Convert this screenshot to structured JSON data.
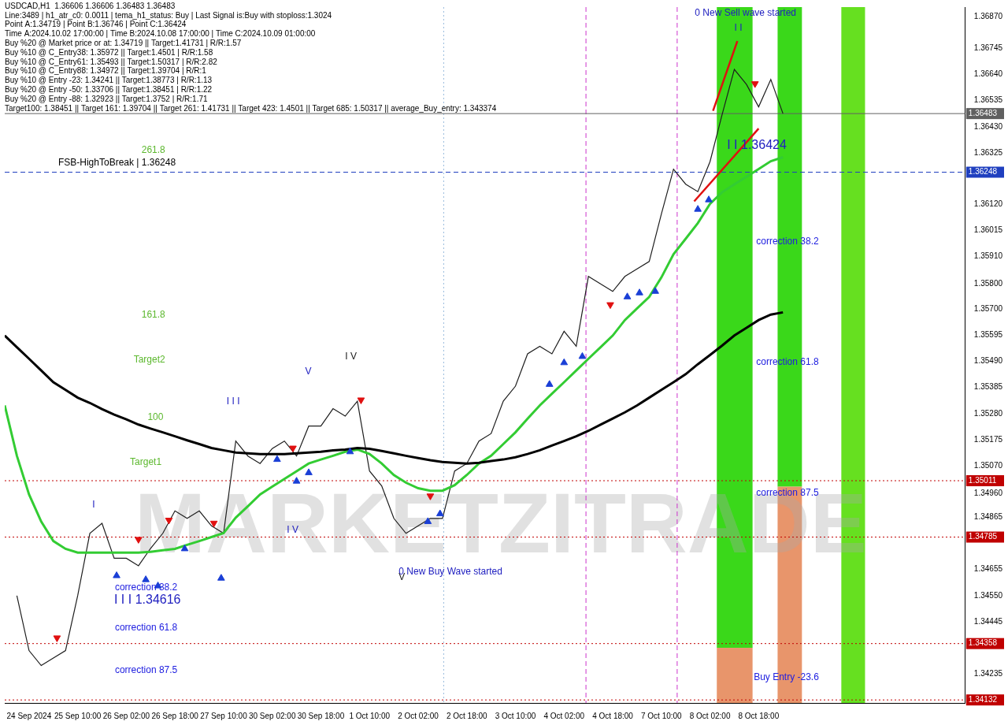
{
  "chart_data": {
    "type": "line",
    "info": [
      "USDCAD,H1  1.36606 1.36606 1.36483 1.36483",
      "Line:3489 | h1_atr_c0: 0.0011 | tema_h1_status: Buy | Last Signal is:Buy with stoploss:1.3024",
      "Point A:1.34719 | Point B:1.36746 | Point C:1.36424",
      "Time A:2024.10.02 17:00:00 | Time B:2024.10.08 17:00:00 | Time C:2024.10.09 01:00:00",
      "Buy %20 @ Market price or at: 1.34719 || Target:1.41731 | R/R:1.57",
      "Buy %10 @ C_Entry38: 1.35972 || Target:1.4501 | R/R:1.58",
      "Buy %10 @ C_Entry61: 1.35493 || Target:1.50317 | R/R:2.82",
      "Buy %10 @ C_Entry88: 1.34972 || Target:1.39704 | R/R:1",
      "Buy %10 @ Entry -23: 1.34241 || Target:1.38773 | R/R:1.13",
      "Buy %20 @ Entry -50: 1.33706 || Target:1.38451 | R/R:1.22",
      "Buy %20 @ Entry -88: 1.32923 || Target:1.3752 | R/R:1.71",
      "Target100: 1.38451 || Target 161: 1.39704 || Target 261: 1.41731 || Target 423: 1.4501 || Target 685: 1.50317 || average_Buy_entry: 1.343374"
    ],
    "watermark": "MARKETZITRADE",
    "categories": [
      null,
      null,
      "24 Sep 2024",
      null,
      null,
      null,
      "25 Sep 10:00",
      null,
      null,
      null,
      "26 Sep 02:00",
      null,
      null,
      null,
      "26 Sep 18:00",
      null,
      null,
      null,
      "27 Sep 10:00",
      null,
      null,
      null,
      "30 Sep 02:00",
      null,
      null,
      null,
      "30 Sep 18:00",
      null,
      null,
      null,
      "1 Oct 10:00",
      null,
      null,
      null,
      "2 Oct 02:00",
      null,
      null,
      null,
      "2 Oct 18:00",
      null,
      null,
      null,
      "3 Oct 10:00",
      null,
      null,
      null,
      "4 Oct 02:00",
      null,
      null,
      null,
      "4 Oct 18:00",
      null,
      null,
      null,
      "7 Oct 10:00",
      null,
      null,
      null,
      "8 Oct 02:00",
      null,
      null,
      null,
      "8 Oct 18:00",
      null,
      null,
      null,
      null,
      null,
      null,
      null,
      null,
      null,
      null,
      null,
      null,
      null,
      null,
      null,
      null,
      null
    ],
    "xlim": [
      0,
      79
    ],
    "ylim": [
      1.3412,
      1.3691
    ],
    "yticks": [
      {
        "value": 1.3687,
        "label": "1.36870"
      },
      {
        "value": 1.36745,
        "label": "1.36745"
      },
      {
        "value": 1.3664,
        "label": "1.36640"
      },
      {
        "value": 1.36535,
        "label": "1.36535"
      },
      {
        "value": 1.3643,
        "label": "1.36430"
      },
      {
        "value": 1.36325,
        "label": "1.36325"
      },
      {
        "value": 1.3612,
        "label": "1.36120"
      },
      {
        "value": 1.36015,
        "label": "1.36015"
      },
      {
        "value": 1.3591,
        "label": "1.35910"
      },
      {
        "value": 1.358,
        "label": "1.35800"
      },
      {
        "value": 1.357,
        "label": "1.35700"
      },
      {
        "value": 1.35595,
        "label": "1.35595"
      },
      {
        "value": 1.3549,
        "label": "1.35490"
      },
      {
        "value": 1.35385,
        "label": "1.35385"
      },
      {
        "value": 1.3528,
        "label": "1.35280"
      },
      {
        "value": 1.35175,
        "label": "1.35175"
      },
      {
        "value": 1.3507,
        "label": "1.35070"
      },
      {
        "value": 1.3496,
        "label": "1.34960"
      },
      {
        "value": 1.34865,
        "label": "1.34865"
      },
      {
        "value": 1.34655,
        "label": "1.34655"
      },
      {
        "value": 1.3455,
        "label": "1.34550"
      },
      {
        "value": 1.34445,
        "label": "1.34445"
      },
      {
        "value": 1.34235,
        "label": "1.34235"
      }
    ],
    "grid": false,
    "legend": false,
    "series": [
      {
        "type": "line",
        "color": "#1e1e1e",
        "line_style": "solid",
        "values": [
          null,
          1.3455,
          1.3433,
          1.3427,
          1.343,
          1.3433,
          1.3455,
          1.348,
          1.3484,
          1.347,
          1.347,
          1.3467,
          1.3474,
          1.348,
          1.3489,
          1.3486,
          1.3489,
          1.3483,
          1.348,
          1.3517,
          1.3511,
          1.3508,
          1.3514,
          1.3517,
          1.3511,
          1.3523,
          1.3523,
          1.353,
          1.3527,
          1.3533,
          1.3505,
          1.3499,
          1.3486,
          1.348,
          1.3483,
          1.3486,
          1.3486,
          1.3505,
          1.3508,
          1.3517,
          1.352,
          1.3533,
          1.3539,
          1.3552,
          1.3555,
          1.3552,
          1.3561,
          1.3555,
          1.3583,
          1.358,
          1.3577,
          1.3583,
          1.3586,
          1.3589,
          1.3608,
          1.3626,
          1.362,
          1.3617,
          1.3629,
          1.3648,
          1.3666,
          1.366,
          1.3651,
          1.3662,
          1.36483,
          null,
          null,
          null,
          null,
          null,
          null,
          null,
          null,
          null,
          null,
          null,
          null,
          null,
          null,
          null
        ]
      },
      {
        "type": "line",
        "color": "#33cc33",
        "line_style": "solid",
        "values": [
          1.35313,
          1.35111,
          1.34956,
          1.34847,
          1.34769,
          1.34738,
          1.34723,
          1.34723,
          1.34723,
          1.34723,
          1.34723,
          1.34723,
          1.34726,
          1.34732,
          1.34738,
          1.34754,
          1.34769,
          1.34785,
          1.34801,
          1.34863,
          1.34909,
          1.34956,
          1.34987,
          1.35018,
          1.35049,
          1.3508,
          1.35096,
          1.35111,
          1.35127,
          1.35136,
          1.35118,
          1.3508,
          1.35034,
          1.35003,
          1.34981,
          1.34971,
          1.34971,
          1.34993,
          1.35034,
          1.3508,
          1.35111,
          1.35158,
          1.35205,
          1.3526,
          1.35313,
          1.3536,
          1.35406,
          1.35453,
          1.355,
          1.35546,
          1.35593,
          1.35655,
          1.35702,
          1.35748,
          1.35826,
          1.35919,
          1.35981,
          1.36044,
          1.36121,
          1.36168,
          1.36199,
          1.3623,
          1.36261,
          1.36292,
          1.36308,
          null,
          null,
          null,
          null,
          null,
          null,
          null,
          null,
          null,
          null,
          null,
          null,
          null,
          null,
          null
        ]
      },
      {
        "type": "line",
        "color": "#000000",
        "line_style": "solid",
        "values": [
          1.35593,
          1.35546,
          1.355,
          1.35453,
          1.35406,
          1.35375,
          1.35344,
          1.35323,
          1.35298,
          1.35276,
          1.35257,
          1.35236,
          1.3522,
          1.35205,
          1.35189,
          1.35173,
          1.35158,
          1.35142,
          1.35133,
          1.35124,
          1.35121,
          1.35118,
          1.35118,
          1.35118,
          1.35121,
          1.35124,
          1.35127,
          1.35133,
          1.35136,
          1.35142,
          1.35139,
          1.3513,
          1.35121,
          1.35111,
          1.35102,
          1.35093,
          1.35086,
          1.35083,
          1.3508,
          1.35083,
          1.3509,
          1.35096,
          1.35105,
          1.35118,
          1.35133,
          1.35152,
          1.3517,
          1.35189,
          1.35211,
          1.35236,
          1.3526,
          1.35285,
          1.35313,
          1.35344,
          1.35375,
          1.35406,
          1.35438,
          1.35478,
          1.35515,
          1.35553,
          1.35593,
          1.35624,
          1.35655,
          1.35677,
          1.35686,
          null,
          null,
          null,
          null,
          null,
          null,
          null,
          null,
          null,
          null,
          null,
          null,
          null,
          null,
          null
        ]
      }
    ],
    "trend_lines": [
      {
        "color": "#e01010",
        "points": [
          {
            "x": 58.25,
            "y": 1.36494
          },
          {
            "x": 60.25,
            "y": 1.36774
          }
        ]
      },
      {
        "color": "#e01010",
        "points": [
          {
            "x": 56.7,
            "y": 1.36131
          },
          {
            "x": 62,
            "y": 1.36423
          }
        ]
      }
    ],
    "signals": [
      {
        "marker": "arrow_up",
        "color": "#1a3fd6",
        "points": [
          {
            "x": 9.2,
            "y": 1.3463
          },
          {
            "x": 11.6,
            "y": 1.34614
          },
          {
            "x": 12.6,
            "y": 1.34589
          },
          {
            "x": 14.8,
            "y": 1.34738
          },
          {
            "x": 17.8,
            "y": 1.3462
          },
          {
            "x": 22.4,
            "y": 1.35096
          },
          {
            "x": 24,
            "y": 1.35009
          },
          {
            "x": 25,
            "y": 1.35043
          },
          {
            "x": 28.4,
            "y": 1.35127
          },
          {
            "x": 34.8,
            "y": 1.34847
          },
          {
            "x": 35.8,
            "y": 1.34878
          },
          {
            "x": 44.8,
            "y": 1.35397
          },
          {
            "x": 46,
            "y": 1.35484
          },
          {
            "x": 47.5,
            "y": 1.35509
          },
          {
            "x": 51.2,
            "y": 1.35748
          },
          {
            "x": 52.2,
            "y": 1.35764
          },
          {
            "x": 53.5,
            "y": 1.3577
          },
          {
            "x": 57,
            "y": 1.36099
          },
          {
            "x": 57.9,
            "y": 1.36137
          }
        ]
      },
      {
        "marker": "arrow_down",
        "color": "#e01010",
        "points": [
          {
            "x": 4.3,
            "y": 1.34381
          },
          {
            "x": 11,
            "y": 1.34776
          },
          {
            "x": 13.5,
            "y": 1.34853
          },
          {
            "x": 17.2,
            "y": 1.34841
          },
          {
            "x": 23.7,
            "y": 1.35142
          },
          {
            "x": 29.3,
            "y": 1.35335
          },
          {
            "x": 35,
            "y": 1.3495
          },
          {
            "x": 49.8,
            "y": 1.35717
          },
          {
            "x": 61.7,
            "y": 1.36603
          }
        ]
      }
    ],
    "bands": [
      {
        "from": 58.56,
        "to": 61.5,
        "split": 1.34341,
        "colors": [
          "#3ad81a",
          "#e8956b"
        ]
      },
      {
        "from": 63.56,
        "to": 65.56,
        "split": 1.34987,
        "colors": [
          "#3ad81a",
          "#e8956b"
        ]
      },
      {
        "from": 68.8,
        "to": 70.75,
        "color": "#66e020"
      }
    ],
    "hlines": [
      {
        "value": 1.36483,
        "label": "1.36483",
        "color": "#606060",
        "line_style": "solid"
      },
      {
        "value": 1.36248,
        "label": "1.36248",
        "color": "#1f3fbf",
        "line_style": "dashed"
      },
      {
        "value": 1.35011,
        "label": "1.35011",
        "color": "#c00000",
        "line_style": "dotted"
      },
      {
        "value": 1.34785,
        "label": "1.34785",
        "color": "#c00000",
        "line_style": "dotted"
      },
      {
        "value": 1.34358,
        "label": "1.34358",
        "color": "#c00000",
        "line_style": "dotted"
      },
      {
        "value": 1.34132,
        "label": "1.34132",
        "color": "#c00000",
        "line_style": "dotted"
      }
    ],
    "vlines": [
      {
        "x": 47.8,
        "color": "#cc33cc",
        "line_style": "dashed"
      },
      {
        "x": 55.3,
        "color": "#cc33cc",
        "line_style": "dashed"
      },
      {
        "x": 36.1,
        "color": "#99bbdd",
        "line_style": "dotted"
      }
    ],
    "annotations": [
      {
        "text": "FSB-HighToBreak | 1.36248",
        "x": 4.4,
        "y": 1.36286,
        "color": "#000000"
      },
      {
        "text": "261.8",
        "x": 11.25,
        "y": 1.36336,
        "color": "#5cb82e"
      },
      {
        "text": "161.8",
        "x": 11.25,
        "y": 1.35674,
        "color": "#5cb82e"
      },
      {
        "text": "Target2",
        "x": 10.6,
        "y": 1.35497,
        "color": "#5cb82e"
      },
      {
        "text": "100",
        "x": 11.75,
        "y": 1.35264,
        "color": "#5cb82e"
      },
      {
        "text": "Target1",
        "x": 10.3,
        "y": 1.35086,
        "color": "#5cb82e"
      },
      {
        "text": "correction 38.2",
        "x": 61.8,
        "y": 1.35969,
        "color": "#2020e0"
      },
      {
        "text": "correction 61.8",
        "x": 61.8,
        "y": 1.35487,
        "color": "#2020e0"
      },
      {
        "text": "correction 87.5",
        "x": 61.8,
        "y": 1.34962,
        "color": "#2020e0"
      },
      {
        "text": "Buy Entry -23.6",
        "x": 61.6,
        "y": 1.34223,
        "color": "#2020e0"
      },
      {
        "text": "correction 38.2",
        "x": 9.06,
        "y": 1.34583,
        "color": "#2020e0"
      },
      {
        "text": "correction 61.8",
        "x": 9.06,
        "y": 1.34421,
        "color": "#2020e0"
      },
      {
        "text": "correction 87.5",
        "x": 9.06,
        "y": 1.34251,
        "color": "#2020e0"
      },
      {
        "text": "I",
        "x": 7.2,
        "y": 1.34915,
        "color": "#2020c0"
      },
      {
        "text": "I I I",
        "x": 18.25,
        "y": 1.35329,
        "color": "#2020c0"
      },
      {
        "text": "V",
        "x": 24.7,
        "y": 1.35447,
        "color": "#2020c0"
      },
      {
        "text": "I V",
        "x": 28,
        "y": 1.35509,
        "color": "#202020"
      },
      {
        "text": "I V",
        "x": 23.2,
        "y": 1.34813,
        "color": "#2020c0"
      },
      {
        "text": "V",
        "x": 32.4,
        "y": 1.34623,
        "color": "#202020"
      },
      {
        "text": "0 New Buy Wave started",
        "x": 32.4,
        "y": 1.34645,
        "color": "#2020c0"
      },
      {
        "text": "0 New Sell wave started",
        "x": 56.75,
        "y": 1.36885,
        "color": "#2020c0"
      },
      {
        "text": "I I",
        "x": 60,
        "y": 1.36827,
        "color": "#2020c0"
      }
    ],
    "large_annotations": [
      {
        "text": "I I I 1.34616",
        "x": 9,
        "y": 1.34533,
        "color": "#2020c0"
      },
      {
        "text": "I I 1.36424",
        "x": 59.4,
        "y": 1.36354,
        "color": "#2020c0"
      }
    ]
  }
}
